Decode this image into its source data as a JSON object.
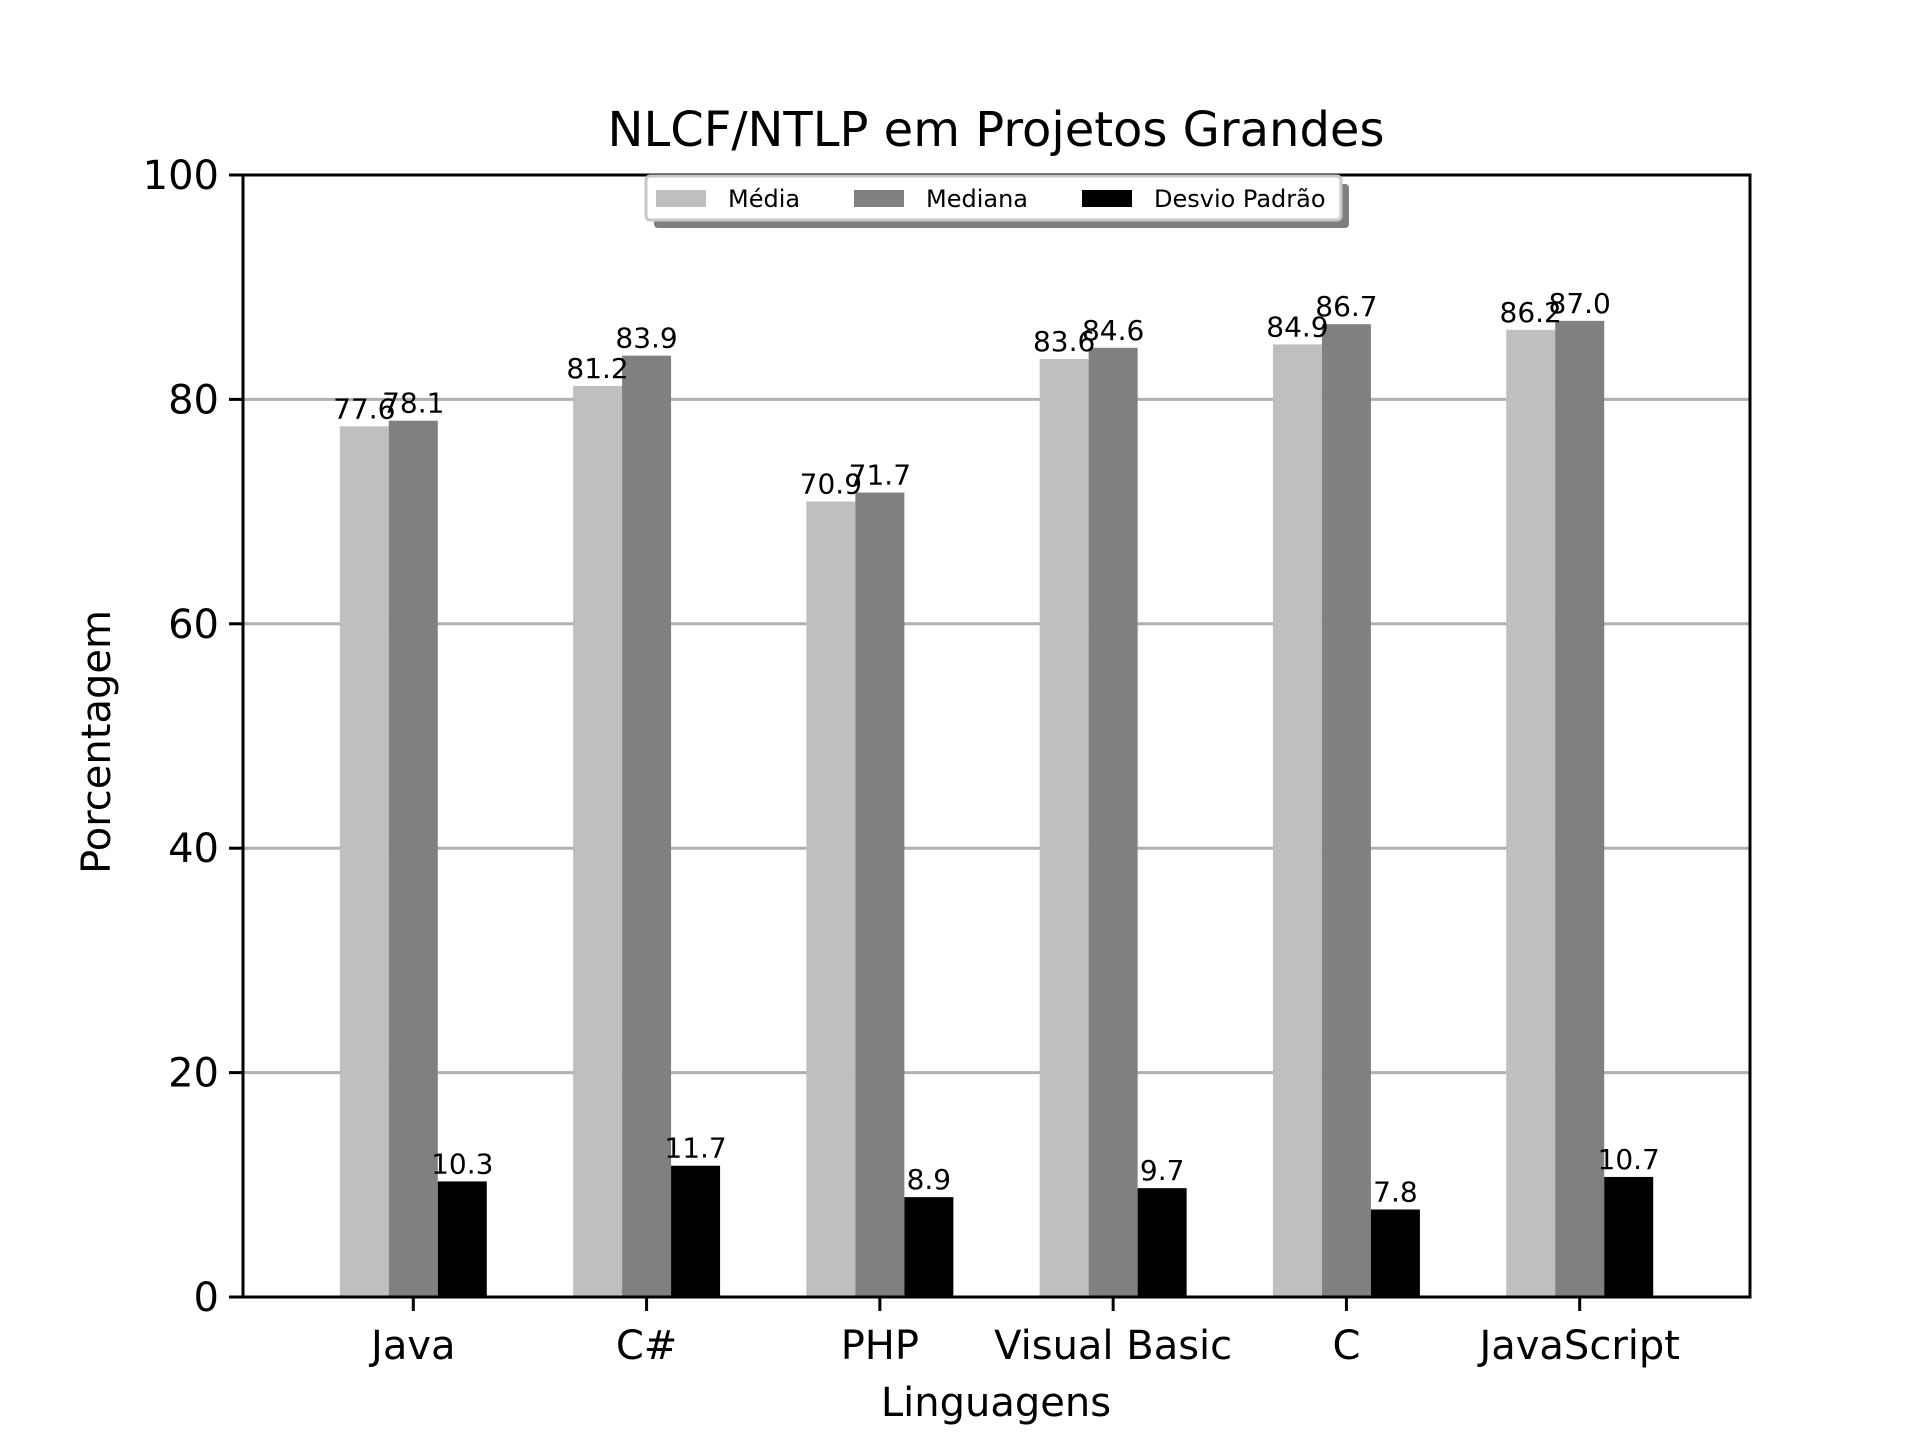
{
  "chart_data": {
    "type": "bar",
    "title": "NLCF/NTLP em Projetos Grandes",
    "xlabel": "Linguagens",
    "ylabel": "Porcentagem",
    "categories": [
      "Java",
      "C#",
      "PHP",
      "Visual Basic",
      "C",
      "JavaScript"
    ],
    "series": [
      {
        "name": "Média",
        "color": "#bfbfbf",
        "values": [
          77.6,
          81.2,
          70.9,
          83.6,
          84.9,
          86.2
        ]
      },
      {
        "name": "Mediana",
        "color": "#808080",
        "values": [
          78.1,
          83.9,
          71.7,
          84.6,
          86.7,
          87.0
        ]
      },
      {
        "name": "Desvio Padrão",
        "color": "#000000",
        "values": [
          10.3,
          11.7,
          8.9,
          9.7,
          7.8,
          10.7
        ]
      }
    ],
    "ylim": [
      0,
      100
    ],
    "yticks": [
      0,
      20,
      40,
      60,
      80,
      100
    ],
    "grid": "horizontal",
    "legend_position": "top-center"
  }
}
